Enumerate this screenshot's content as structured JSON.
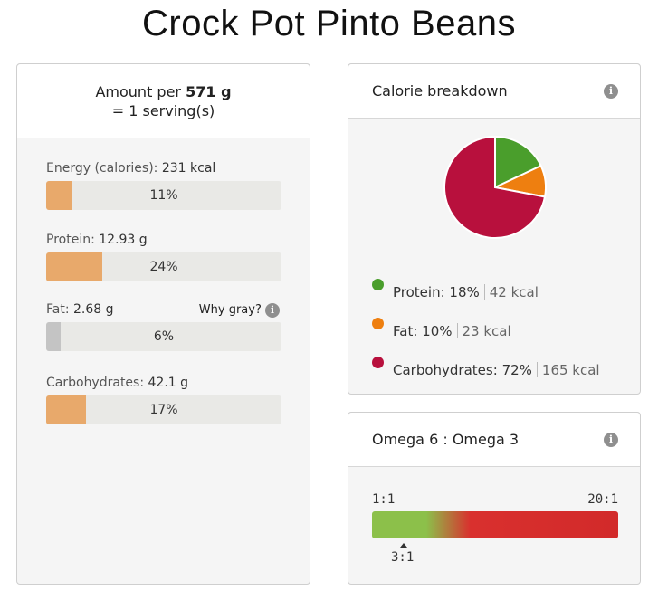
{
  "title": "Crock Pot Pinto Beans",
  "serving": {
    "amount_prefix": "Amount per",
    "amount_value": "571 g",
    "servings_text": "= 1 serving(s)"
  },
  "nutrients": [
    {
      "label": "Energy (calories):",
      "value": "231 kcal",
      "percent_text": "11%",
      "percent": 11,
      "gray": false
    },
    {
      "label": "Protein:",
      "value": "12.93 g",
      "percent_text": "24%",
      "percent": 24,
      "gray": false
    },
    {
      "label": "Fat:",
      "value": "2.68 g",
      "percent_text": "6%",
      "percent": 6,
      "gray": true
    },
    {
      "label": "Carbohydrates:",
      "value": "42.1 g",
      "percent_text": "17%",
      "percent": 17,
      "gray": false
    }
  ],
  "why_gray_label": "Why gray?",
  "info_icon": "i",
  "calorie_breakdown": {
    "title": "Calorie breakdown",
    "items": [
      {
        "name": "Protein:",
        "percent_text": "18%",
        "kcal_text": "42 kcal",
        "color": "#4a9e2c"
      },
      {
        "name": "Fat:",
        "percent_text": "10%",
        "kcal_text": "23 kcal",
        "color": "#ee7f10"
      },
      {
        "name": "Carbohydrates:",
        "percent_text": "72%",
        "kcal_text": "165 kcal",
        "color": "#b8103d"
      }
    ]
  },
  "chart_data": {
    "type": "pie",
    "categories": [
      "Protein",
      "Fat",
      "Carbohydrates"
    ],
    "values": [
      18,
      10,
      72
    ],
    "colors": [
      "#4a9e2c",
      "#ee7f10",
      "#b8103d"
    ]
  },
  "omega": {
    "title": "Omega 6 : Omega 3",
    "scale_left": "1:1",
    "scale_right": "20:1",
    "marker_label": "3:1",
    "colors": {
      "good": "#8cc04a",
      "bad": "#d22a2a"
    }
  }
}
